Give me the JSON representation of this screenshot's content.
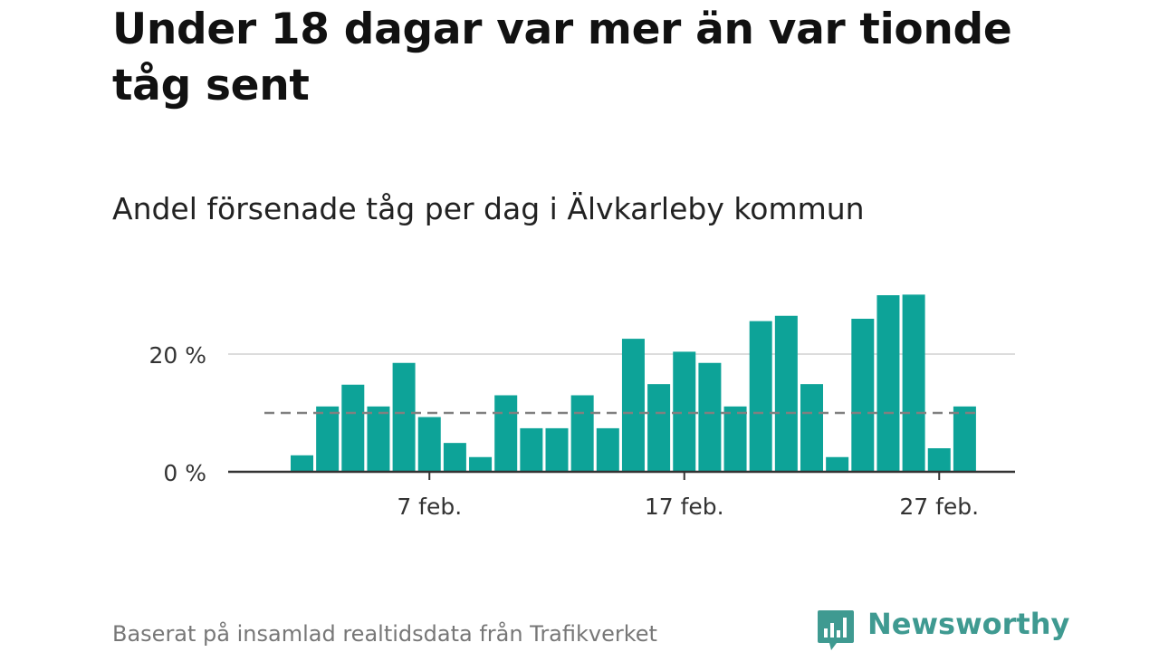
{
  "headline": "Under 18 dagar var mer än var tionde tåg sent",
  "subheadline": "Andel försenade tåg per dag i Älvkarleby kommun",
  "source": "Baserat på insamlad realtidsdata från Trafikverket",
  "brand": {
    "name": "Newsworthy",
    "icon": "newsworthy-chart-bubble-icon",
    "color": "#3f9a91"
  },
  "chart_data": {
    "type": "bar",
    "bar_color": "#0da398",
    "reference_line": {
      "value": 10,
      "style": "dashed",
      "color": "#808080"
    },
    "x": [
      "2 feb.",
      "3 feb.",
      "4 feb.",
      "5 feb.",
      "6 feb.",
      "7 feb.",
      "8 feb.",
      "9 feb.",
      "10 feb.",
      "11 feb.",
      "12 feb.",
      "13 feb.",
      "14 feb.",
      "15 feb.",
      "16 feb.",
      "17 feb.",
      "18 feb.",
      "19 feb.",
      "20 feb.",
      "21 feb.",
      "22 feb.",
      "23 feb.",
      "24 feb.",
      "25 feb.",
      "26 feb.",
      "27 feb.",
      "28 feb."
    ],
    "values": [
      2.8,
      11.1,
      14.8,
      11.1,
      18.5,
      9.3,
      4.9,
      2.5,
      13.0,
      7.4,
      7.4,
      13.0,
      7.4,
      22.6,
      14.9,
      20.4,
      18.5,
      11.1,
      25.6,
      26.5,
      14.9,
      2.5,
      26.0,
      30.0,
      30.1,
      4.0,
      11.1
    ],
    "ylim": [
      0,
      30
    ],
    "y_ticks": [
      {
        "value": 0,
        "label": "0 %"
      },
      {
        "value": 20,
        "label": "20 %"
      }
    ],
    "x_ticks": [
      {
        "x": "7 feb.",
        "label": "7 feb."
      },
      {
        "x": "17 feb.",
        "label": "17 feb."
      },
      {
        "x": "27 feb.",
        "label": "27 feb."
      }
    ],
    "grid": true
  }
}
